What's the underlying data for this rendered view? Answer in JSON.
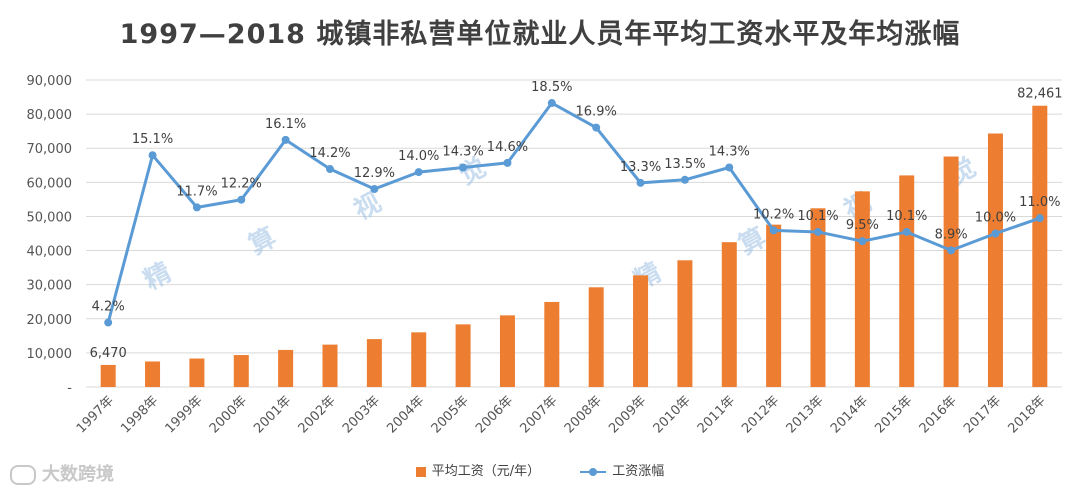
{
  "title": "1997—2018 城镇非私营单位就业人员年平均工资水平及年均涨幅",
  "brand": "大数跨境",
  "watermarks": [
    "精",
    "算",
    "视",
    "觉",
    "精",
    "算",
    "视",
    "觉"
  ],
  "colors": {
    "bar": "#ed7d31",
    "line": "#5b9bd5",
    "grid": "#d9d9d9"
  },
  "chart_data": {
    "type": "bar",
    "categories": [
      "1997年",
      "1998年",
      "1999年",
      "2000年",
      "2001年",
      "2002年",
      "2003年",
      "2004年",
      "2005年",
      "2006年",
      "2007年",
      "2008年",
      "2009年",
      "2010年",
      "2011年",
      "2012年",
      "2013年",
      "2014年",
      "2015年",
      "2016年",
      "2017年",
      "2018年"
    ],
    "series": [
      {
        "name": "平均工资（元/年）",
        "type": "bar",
        "values": [
          6470,
          7479,
          8346,
          9371,
          10870,
          12422,
          14040,
          16024,
          18364,
          21001,
          24932,
          29229,
          32736,
          37147,
          42452,
          47593,
          52388,
          57361,
          62029,
          67569,
          74318,
          82461
        ]
      },
      {
        "name": "工资涨幅",
        "type": "line",
        "values": [
          4.2,
          15.1,
          11.7,
          12.2,
          16.1,
          14.2,
          12.9,
          14.0,
          14.3,
          14.6,
          18.5,
          16.9,
          13.3,
          13.5,
          14.3,
          10.2,
          10.1,
          9.5,
          10.1,
          8.9,
          10.0,
          11.0
        ]
      }
    ],
    "bar_labels": [
      {
        "index": 0,
        "text": "6,470"
      },
      {
        "index": 21,
        "text": "82,461"
      }
    ],
    "line_labels": [
      "4.2%",
      "15.1%",
      "11.7%",
      "12.2%",
      "16.1%",
      "14.2%",
      "12.9%",
      "14.0%",
      "14.3%",
      "14.6%",
      "18.5%",
      "16.9%",
      "13.3%",
      "13.5%",
      "14.3%",
      "10.2%",
      "10.1%",
      "9.5%",
      "10.1%",
      "8.9%",
      "10.0%",
      "11.0%"
    ],
    "y_ticks": [
      "-",
      "10,000",
      "20,000",
      "30,000",
      "40,000",
      "50,000",
      "60,000",
      "70,000",
      "80,000",
      "90,000"
    ],
    "ylim": [
      0,
      90000
    ],
    "line_ylim": [
      0,
      20
    ],
    "legend": [
      "平均工资（元/年）",
      "工资涨幅"
    ],
    "legend_position": "bottom",
    "grid": true
  }
}
